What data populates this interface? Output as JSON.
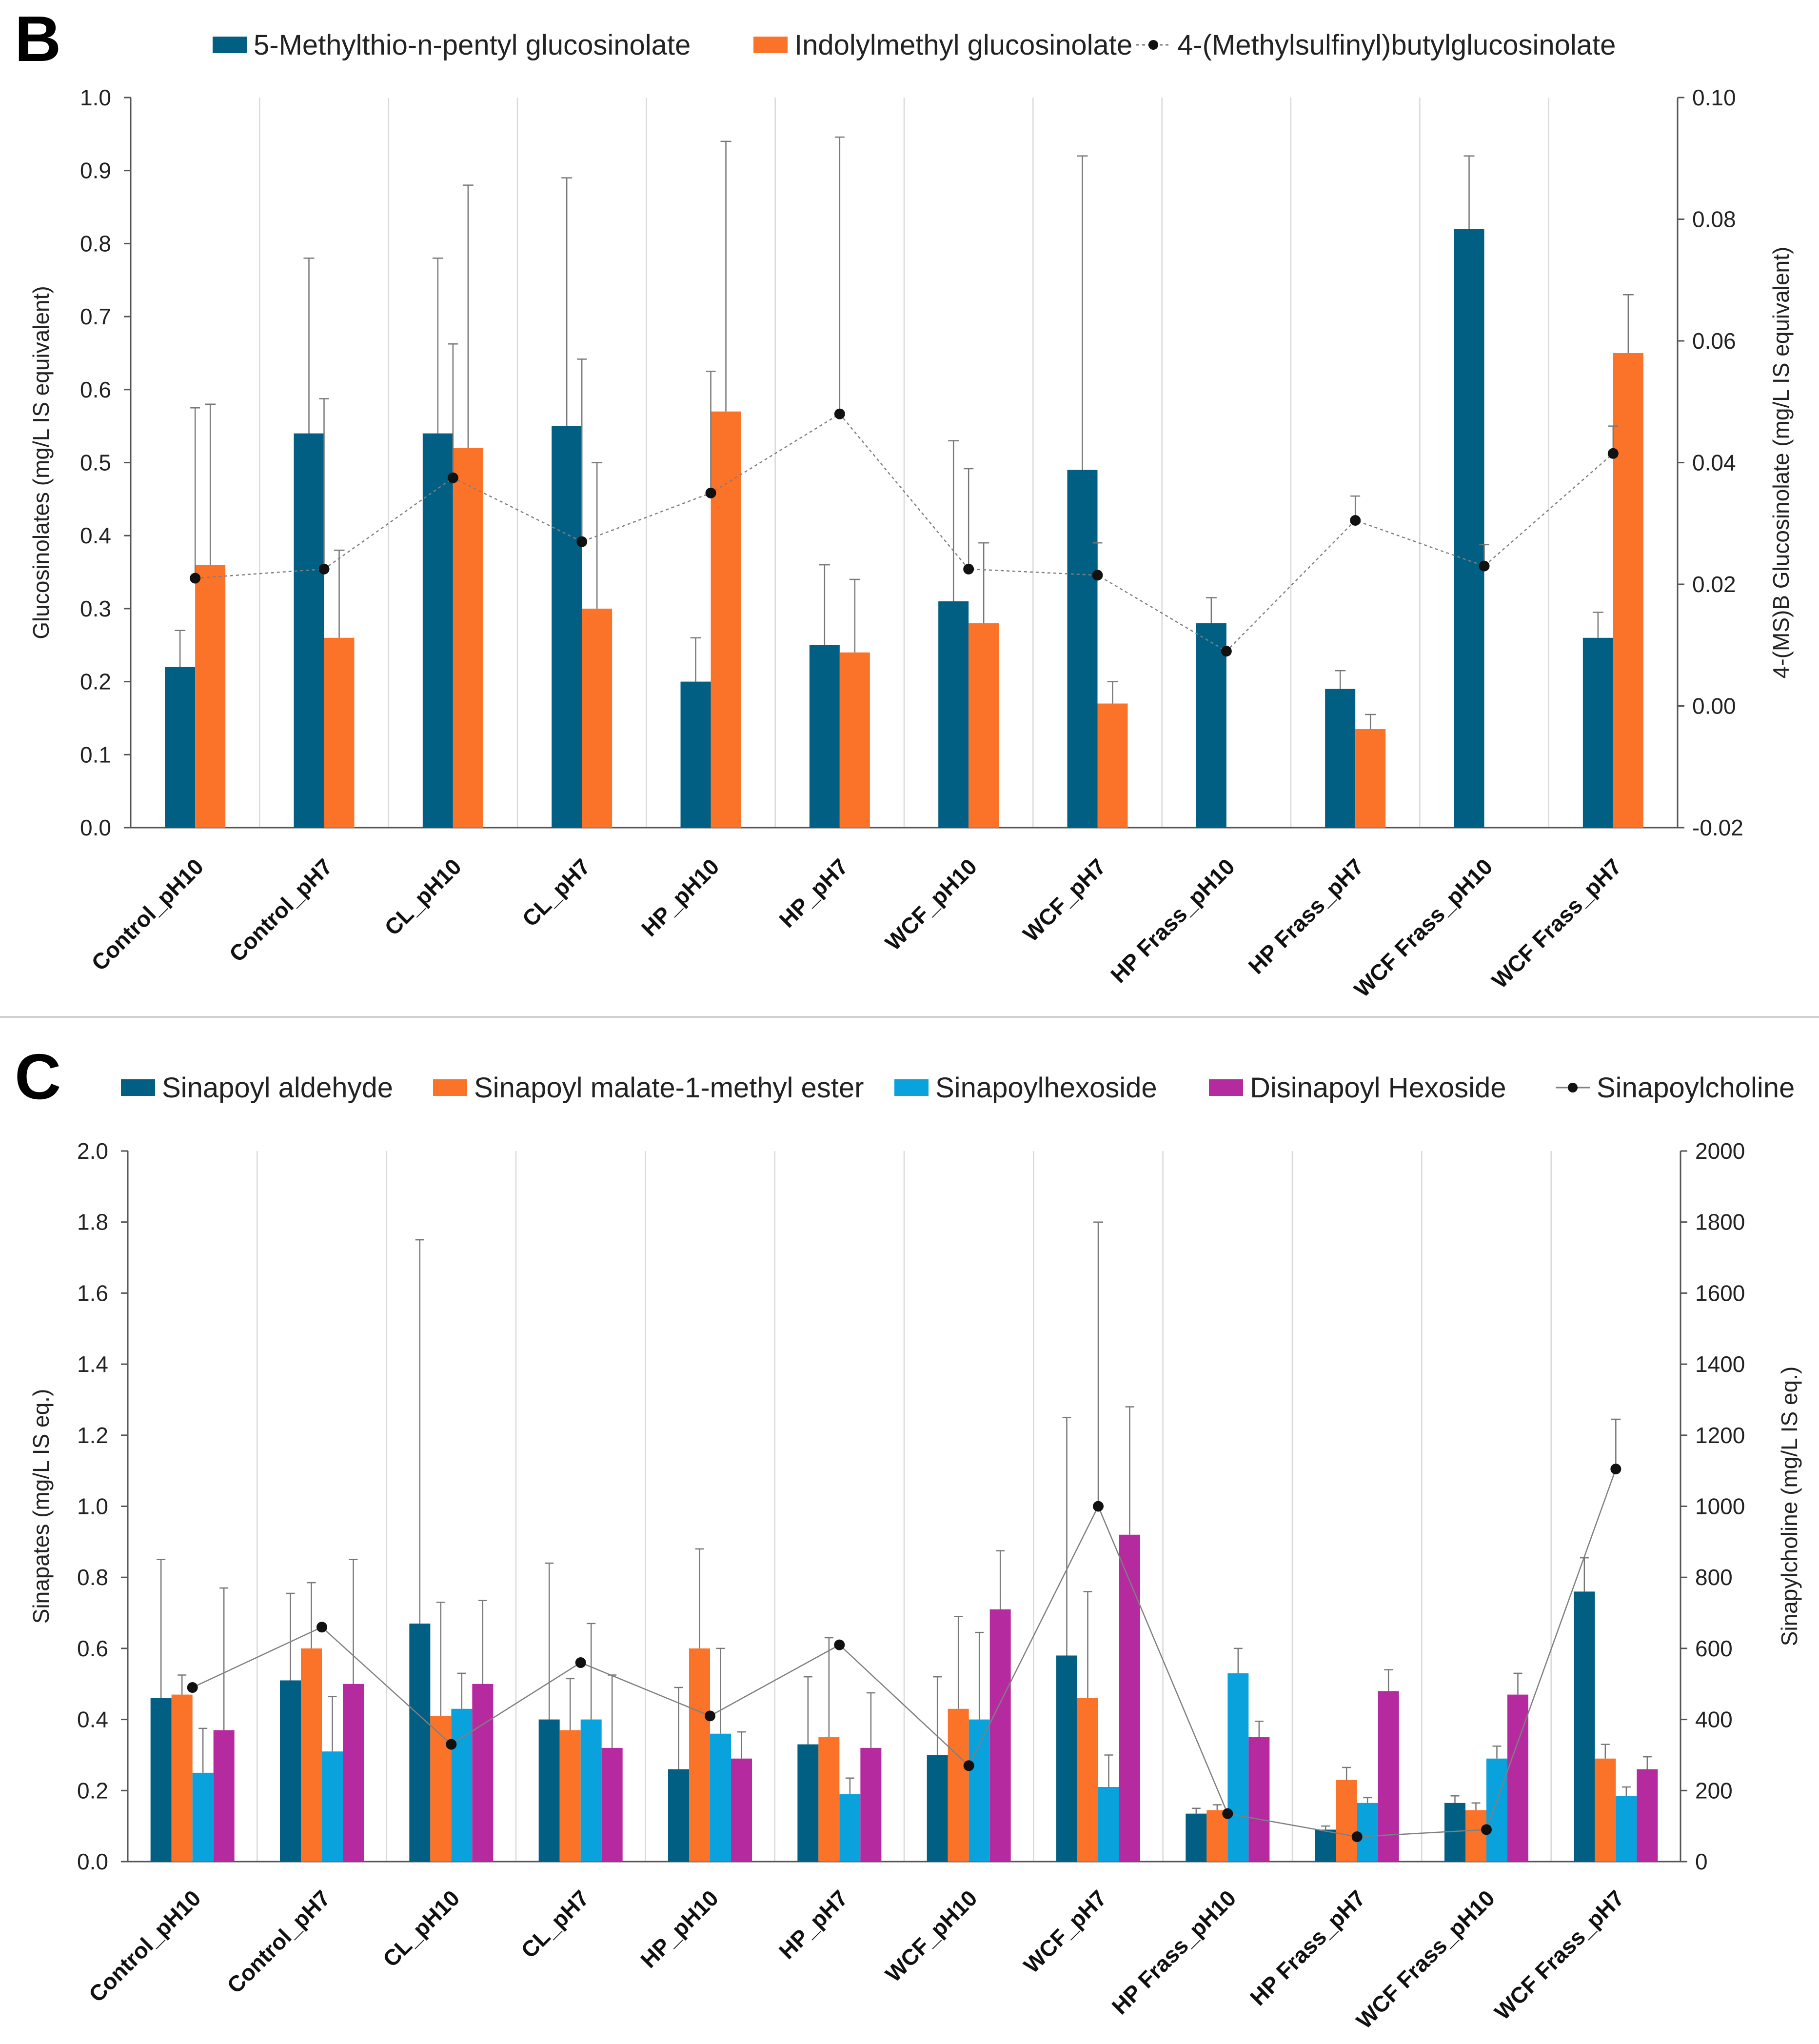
{
  "colors": {
    "dark_blue": "#005f82",
    "orange": "#fb7328",
    "light_blue": "#0aa2dc",
    "magenta": "#b52b9f",
    "line": "#7f7f7f",
    "marker": "#111111",
    "grid": "#d9d9d9",
    "axis": "#555555",
    "separator": "#d0d0d0"
  },
  "chart_data": [
    {
      "panel_label": "B",
      "type": "bar",
      "categories": [
        "Control_pH10",
        "Control_pH7",
        "CL_pH10",
        "CL_pH7",
        "HP_pH10",
        "HP_pH7",
        "WCF_pH10",
        "WCF_pH7",
        "HP Frass_pH10",
        "HP Frass_pH7",
        "WCF Frass_pH10",
        "WCF Frass_pH7"
      ],
      "ylabel": "Glucosinolates (mg/L IS equivalent)",
      "y2label": "4-(MS)B Glucosinolate (mg/L IS equivalent)",
      "ylim": [
        0,
        1.0
      ],
      "y_ticks": [
        "0.0",
        "0.1",
        "0.2",
        "0.3",
        "0.4",
        "0.5",
        "0.6",
        "0.7",
        "0.8",
        "0.9",
        "1.0"
      ],
      "y2lim": [
        -0.02,
        0.1
      ],
      "y2_ticks": [
        "-0.02",
        "0.00",
        "0.02",
        "0.04",
        "0.06",
        "0.08",
        "0.10"
      ],
      "series": [
        {
          "name": "5-Methylthio-n-pentyl glucosinolate",
          "color_key": "dark_blue",
          "kind": "bar",
          "values": [
            0.22,
            0.54,
            0.54,
            0.55,
            0.2,
            0.25,
            0.31,
            0.49,
            0.28,
            0.19,
            0.82,
            0.26
          ],
          "errors": [
            0.05,
            0.24,
            0.24,
            0.34,
            0.06,
            0.11,
            0.22,
            0.43,
            0.035,
            0.025,
            0.1,
            0.035
          ]
        },
        {
          "name": "Indolylmethyl glucosinolate",
          "color_key": "orange",
          "kind": "bar",
          "values": [
            0.36,
            0.26,
            0.52,
            0.3,
            0.57,
            0.24,
            0.28,
            0.17,
            null,
            0.135,
            null,
            0.65
          ],
          "errors": [
            0.22,
            0.12,
            0.36,
            0.2,
            0.37,
            0.1,
            0.11,
            0.03,
            null,
            0.02,
            null,
            0.08
          ]
        },
        {
          "name": "4-(Methylsulfinyl)butylglucosinolate",
          "color_key": "marker",
          "kind": "line",
          "axis": "secondary",
          "values": [
            0.021,
            0.0225,
            0.0375,
            0.027,
            0.035,
            0.048,
            0.0225,
            0.0215,
            0.009,
            0.0305,
            0.023,
            0.0415
          ],
          "errors": [
            0.028,
            0.028,
            0.022,
            0.03,
            0.02,
            0.0455,
            0.0165,
            0.0053,
            null,
            0.004,
            0.0035,
            0.0045
          ]
        }
      ]
    },
    {
      "panel_label": "C",
      "type": "bar",
      "categories": [
        "Control_pH10",
        "Control_pH7",
        "CL_pH10",
        "CL_pH7",
        "HP_pH10",
        "HP_pH7",
        "WCF_pH10",
        "WCF_pH7",
        "HP Frass_pH10",
        "HP Frass_pH7",
        "WCF Frass_pH10",
        "WCF Frass_pH7"
      ],
      "ylabel": "Sinapates (mg/L IS eq.)",
      "y2label": "Sinapylcholine (mg/L IS eq.)",
      "ylim": [
        0,
        2.0
      ],
      "y_ticks": [
        "0.0",
        "0.2",
        "0.4",
        "0.6",
        "0.8",
        "1.0",
        "1.2",
        "1.4",
        "1.6",
        "1.8",
        "2.0"
      ],
      "y2lim": [
        0,
        2000
      ],
      "y2_ticks": [
        "0",
        "200",
        "400",
        "600",
        "800",
        "1000",
        "1200",
        "1400",
        "1600",
        "1800",
        "2000"
      ],
      "series": [
        {
          "name": "Sinapoyl aldehyde",
          "color_key": "dark_blue",
          "kind": "bar",
          "values": [
            0.46,
            0.51,
            0.67,
            0.4,
            0.26,
            0.33,
            0.3,
            0.58,
            0.135,
            0.09,
            0.165,
            0.76
          ],
          "errors": [
            0.39,
            0.245,
            1.08,
            0.44,
            0.23,
            0.19,
            0.22,
            0.67,
            0.015,
            0.01,
            0.02,
            0.095
          ]
        },
        {
          "name": "Sinapoyl malate-1-methyl ester",
          "color_key": "orange",
          "kind": "bar",
          "values": [
            0.47,
            0.6,
            0.41,
            0.37,
            0.6,
            0.35,
            0.43,
            0.46,
            0.145,
            0.23,
            0.145,
            0.29
          ],
          "errors": [
            0.055,
            0.185,
            0.32,
            0.145,
            0.28,
            0.28,
            0.26,
            0.3,
            0.015,
            0.035,
            0.02,
            0.04
          ]
        },
        {
          "name": "Sinapoylhexoside",
          "color_key": "light_blue",
          "kind": "bar",
          "values": [
            0.25,
            0.31,
            0.43,
            0.4,
            0.36,
            0.19,
            0.4,
            0.21,
            0.53,
            0.165,
            0.29,
            0.185
          ],
          "errors": [
            0.125,
            0.155,
            0.1,
            0.27,
            0.24,
            0.045,
            0.245,
            0.09,
            0.07,
            0.015,
            0.035,
            0.025
          ]
        },
        {
          "name": "Disinapoyl Hexoside",
          "color_key": "magenta",
          "kind": "bar",
          "values": [
            0.37,
            0.5,
            0.5,
            0.32,
            0.29,
            0.32,
            0.71,
            0.92,
            0.35,
            0.48,
            0.47,
            0.26
          ],
          "errors": [
            0.4,
            0.35,
            0.235,
            0.205,
            0.075,
            0.155,
            0.165,
            0.36,
            0.045,
            0.06,
            0.06,
            0.035
          ]
        },
        {
          "name": "Sinapoylcholine",
          "color_key": "marker",
          "kind": "line",
          "axis": "secondary",
          "values": [
            490,
            660,
            330,
            560,
            410,
            610,
            270,
            1000,
            135,
            70,
            90,
            1105
          ],
          "errors": [
            null,
            null,
            null,
            null,
            null,
            null,
            null,
            800,
            null,
            null,
            null,
            140
          ]
        }
      ]
    }
  ]
}
